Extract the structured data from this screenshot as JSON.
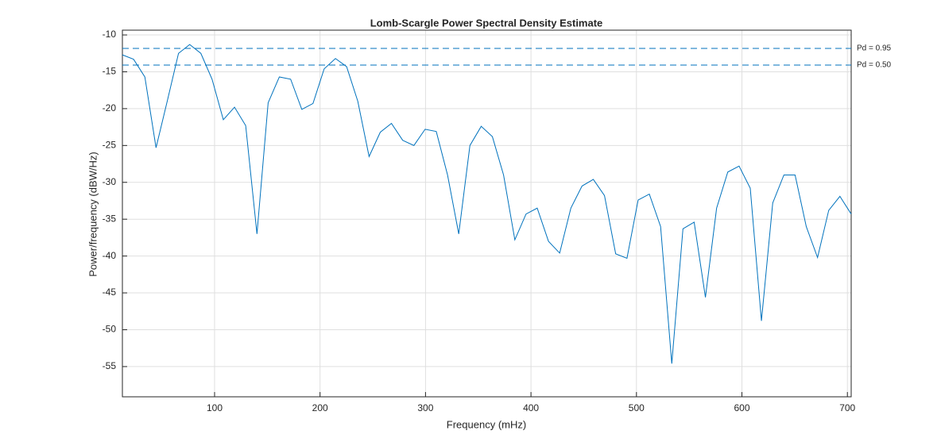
{
  "chart_data": {
    "type": "line",
    "title": "Lomb-Scargle Power Spectral Density Estimate",
    "x_label": "Frequency (mHz)",
    "y_label": "Power/frequency (dBW/Hz)",
    "x": [
      12.6,
      23.2,
      33.9,
      44.5,
      55.1,
      65.8,
      76.4,
      87.0,
      97.6,
      108.3,
      118.9,
      129.5,
      140.2,
      150.8,
      161.4,
      172.1,
      182.7,
      193.3,
      203.9,
      214.6,
      225.2,
      235.8,
      246.5,
      257.1,
      267.7,
      278.4,
      289.0,
      299.6,
      310.2,
      320.9,
      331.5,
      342.1,
      352.8,
      363.4,
      374.0,
      384.7,
      395.3,
      405.9,
      416.6,
      427.2,
      437.8,
      448.4,
      459.1,
      469.7,
      480.3,
      491.0,
      501.6,
      512.2,
      522.9,
      533.5,
      544.1,
      554.7,
      565.4,
      576.0,
      586.6,
      597.3,
      607.9,
      618.5,
      629.2,
      639.8,
      650.4,
      661.0,
      671.7,
      682.3,
      692.9,
      703.6
    ],
    "series": [
      {
        "color": "#0072bd",
        "values": [
          -12.7,
          -13.3,
          -15.7,
          -25.3,
          -19,
          -12.5,
          -11.3,
          -12.5,
          -16,
          -21.5,
          -19.8,
          -22.3,
          -37,
          -19.2,
          -15.7,
          -16,
          -20.1,
          -19.3,
          -14.6,
          -13.2,
          -14.3,
          -19,
          -26.5,
          -23.2,
          -22,
          -24.3,
          -25,
          -22.8,
          -23.1,
          -29,
          -37,
          -25,
          -22.4,
          -23.8,
          -29,
          -37.8,
          -34.3,
          -33.5,
          -38,
          -39.6,
          -33.5,
          -30.5,
          -29.6,
          -31.8,
          -39.7,
          -40.3,
          -32.4,
          -31.6,
          -36,
          -54.6,
          -36.3,
          -35.4,
          -45.6,
          -33.5,
          -28.6,
          -27.8,
          -30.8,
          -48.8,
          -32.8,
          -29,
          -29,
          -36,
          -40.2,
          -33.8,
          -31.9,
          -34.3
        ]
      }
    ],
    "thresholds": [
      {
        "label": "Pd = 0.95",
        "value": -11.83
      },
      {
        "label": "Pd = 0.50",
        "value": -14.09
      }
    ],
    "threshold_color": "#0072bd",
    "xlim": [
      12.6,
      703.6
    ],
    "ylim": [
      -59.1,
      -9.35
    ],
    "xticks": [
      100,
      200,
      300,
      400,
      500,
      600,
      700
    ],
    "yticks": [
      -55,
      -50,
      -45,
      -40,
      -35,
      -30,
      -25,
      -20,
      -15,
      -10
    ],
    "grid": true
  }
}
